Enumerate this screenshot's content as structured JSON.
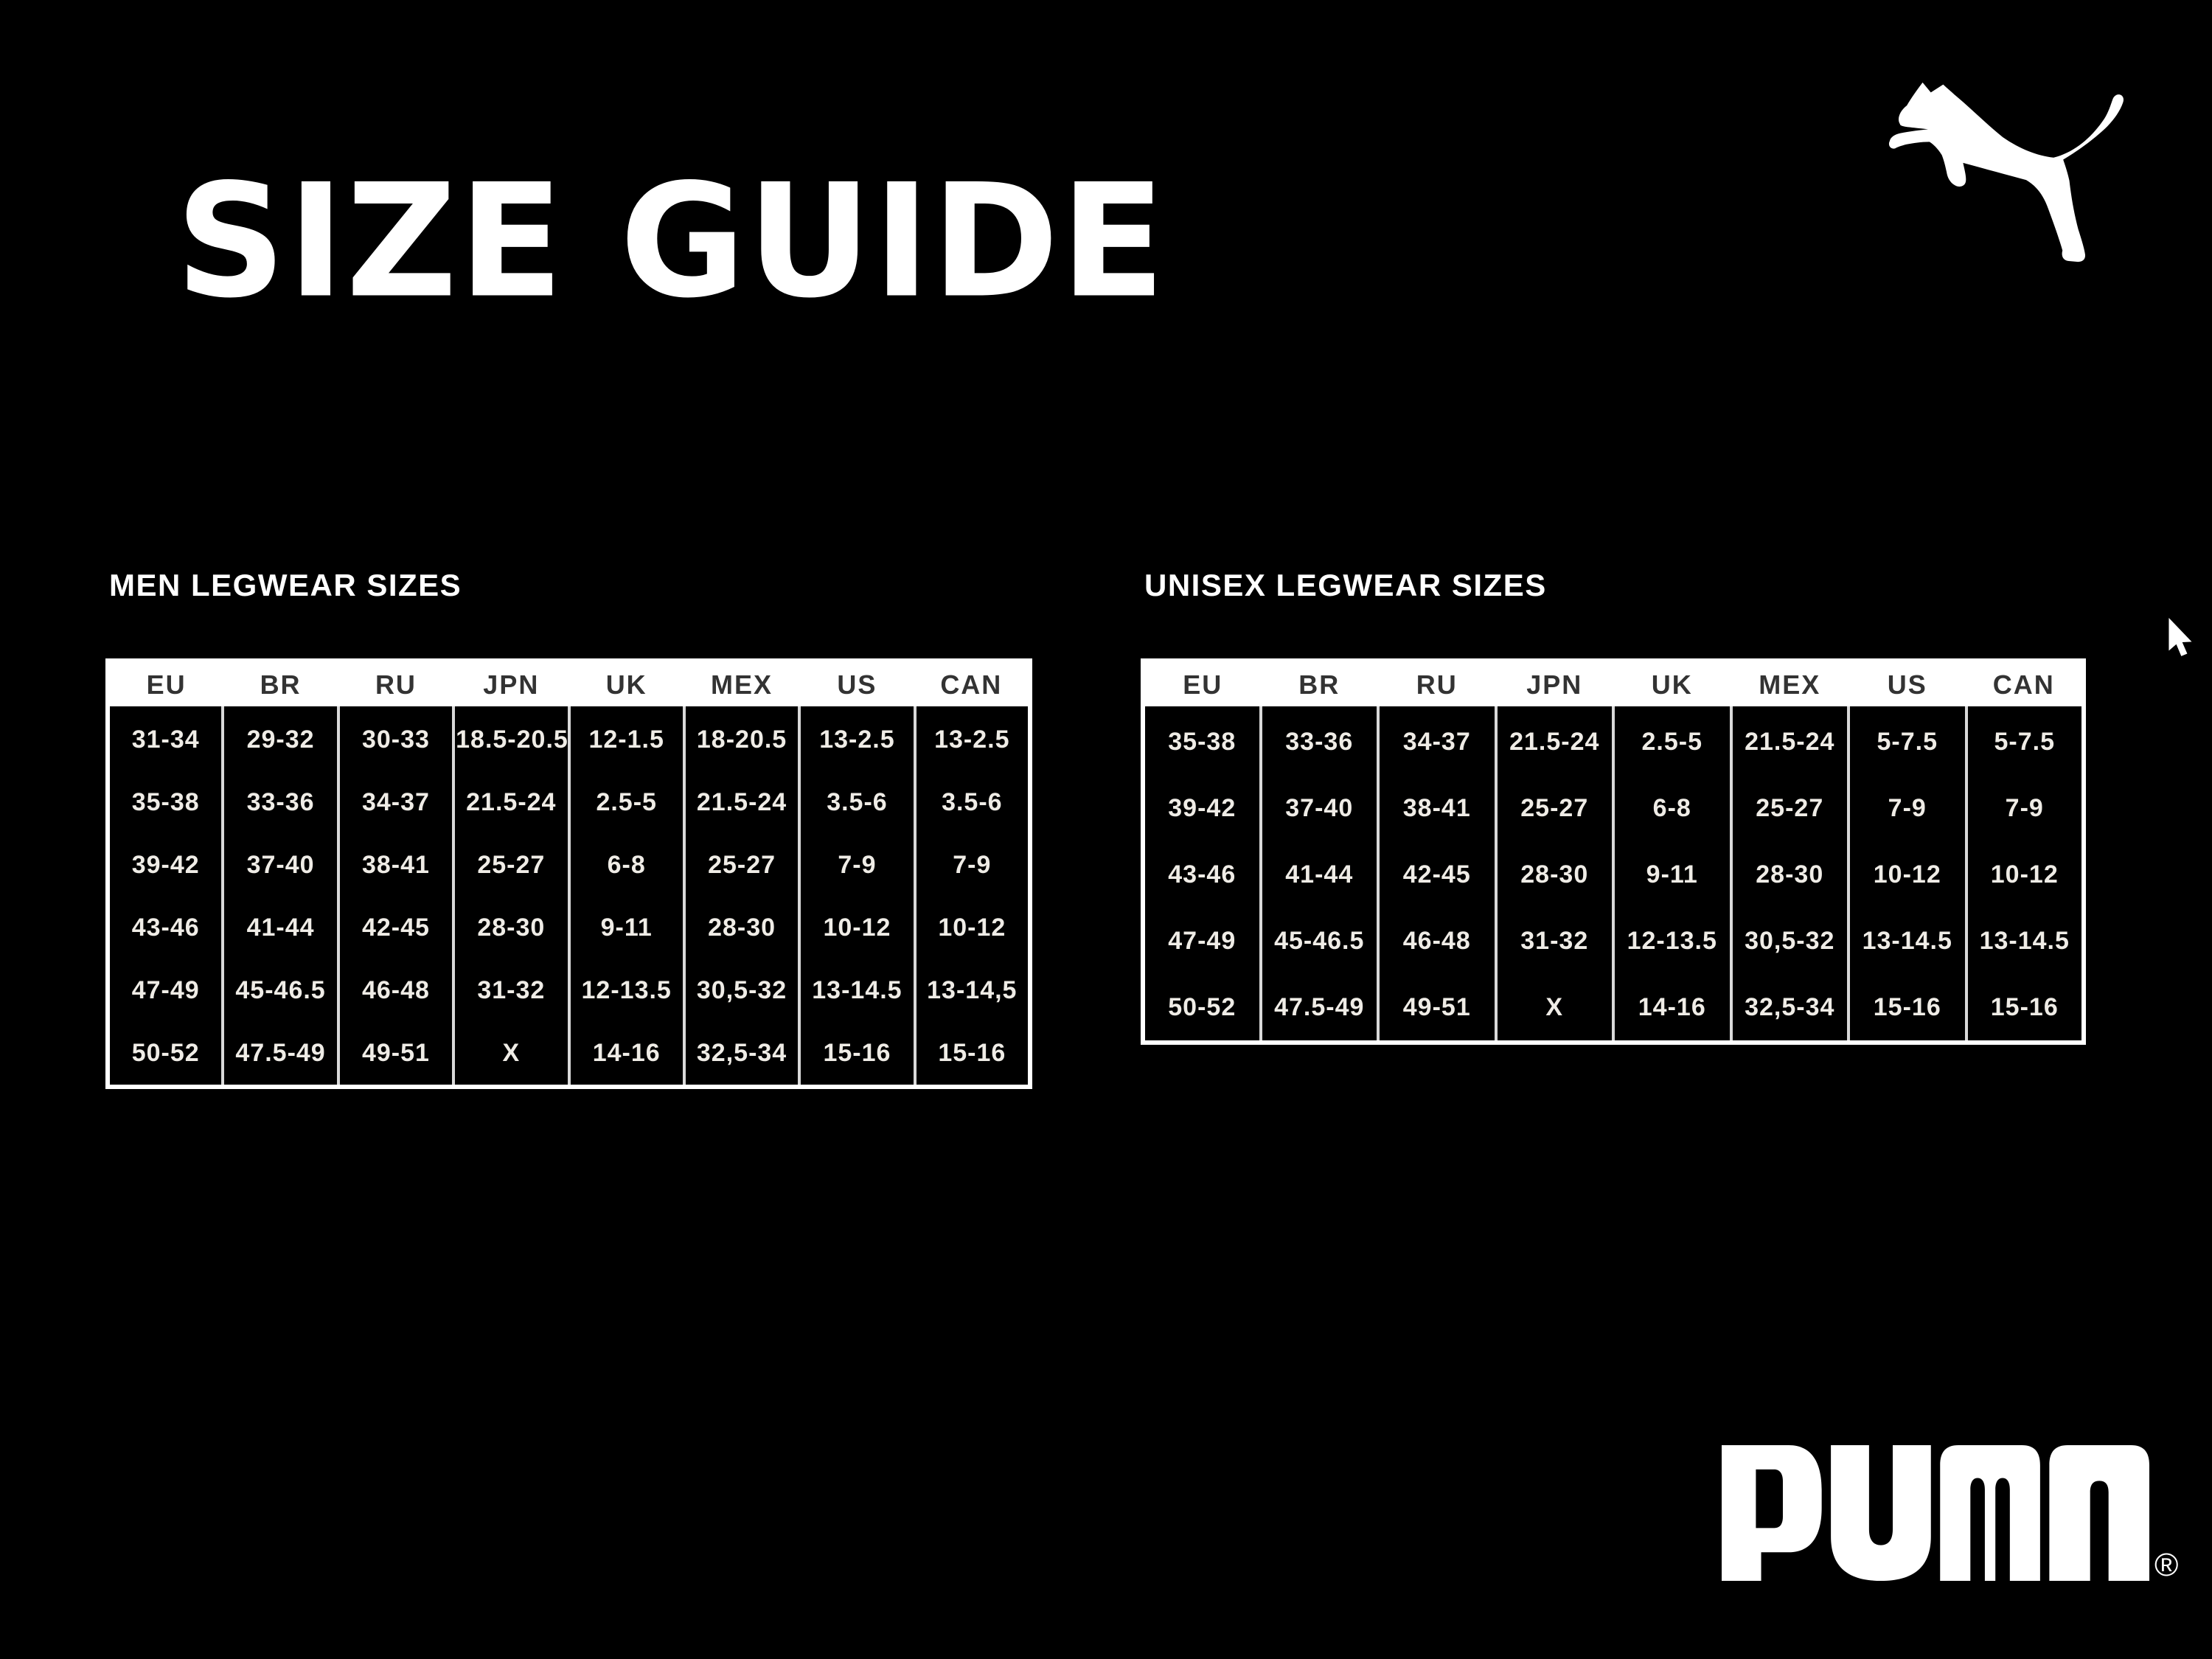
{
  "page": {
    "title": "SIZE GUIDE",
    "background": "#000000"
  },
  "branding": {
    "brand": "PUMA",
    "wordmark": "PUMA",
    "registered_mark": "®",
    "cat_logo": "puma-leaping-cat",
    "logo_color": "#ffffff"
  },
  "colors": {
    "frame": "#ffffff",
    "header_bg": "#ffffff",
    "header_text": "#333333",
    "cell_text": "#efece6",
    "divider": "#d9d9d9",
    "title_text": "#ffffff"
  },
  "tables": [
    {
      "title": "MEN LEGWEAR SIZES",
      "headers": [
        "EU",
        "BR",
        "RU",
        "JPN",
        "UK",
        "MEX",
        "US",
        "CAN"
      ],
      "rows": [
        [
          "31-34",
          "29-32",
          "30-33",
          "18.5-20.5",
          "12-1.5",
          "18-20.5",
          "13-2.5",
          "13-2.5"
        ],
        [
          "35-38",
          "33-36",
          "34-37",
          "21.5-24",
          "2.5-5",
          "21.5-24",
          "3.5-6",
          "3.5-6"
        ],
        [
          "39-42",
          "37-40",
          "38-41",
          "25-27",
          "6-8",
          "25-27",
          "7-9",
          "7-9"
        ],
        [
          "43-46",
          "41-44",
          "42-45",
          "28-30",
          "9-11",
          "28-30",
          "10-12",
          "10-12"
        ],
        [
          "47-49",
          "45-46.5",
          "46-48",
          "31-32",
          "12-13.5",
          "30,5-32",
          "13-14.5",
          "13-14,5"
        ],
        [
          "50-52",
          "47.5-49",
          "49-51",
          "X",
          "14-16",
          "32,5-34",
          "15-16",
          "15-16"
        ]
      ]
    },
    {
      "title": "UNISEX LEGWEAR SIZES",
      "headers": [
        "EU",
        "BR",
        "RU",
        "JPN",
        "UK",
        "MEX",
        "US",
        "CAN"
      ],
      "rows": [
        [
          "35-38",
          "33-36",
          "34-37",
          "21.5-24",
          "2.5-5",
          "21.5-24",
          "5-7.5",
          "5-7.5"
        ],
        [
          "39-42",
          "37-40",
          "38-41",
          "25-27",
          "6-8",
          "25-27",
          "7-9",
          "7-9"
        ],
        [
          "43-46",
          "41-44",
          "42-45",
          "28-30",
          "9-11",
          "28-30",
          "10-12",
          "10-12"
        ],
        [
          "47-49",
          "45-46.5",
          "46-48",
          "31-32",
          "12-13.5",
          "30,5-32",
          "13-14.5",
          "13-14.5"
        ],
        [
          "50-52",
          "47.5-49",
          "49-51",
          "X",
          "14-16",
          "32,5-34",
          "15-16",
          "15-16"
        ]
      ]
    }
  ],
  "cursor": {
    "type": "arrow"
  }
}
